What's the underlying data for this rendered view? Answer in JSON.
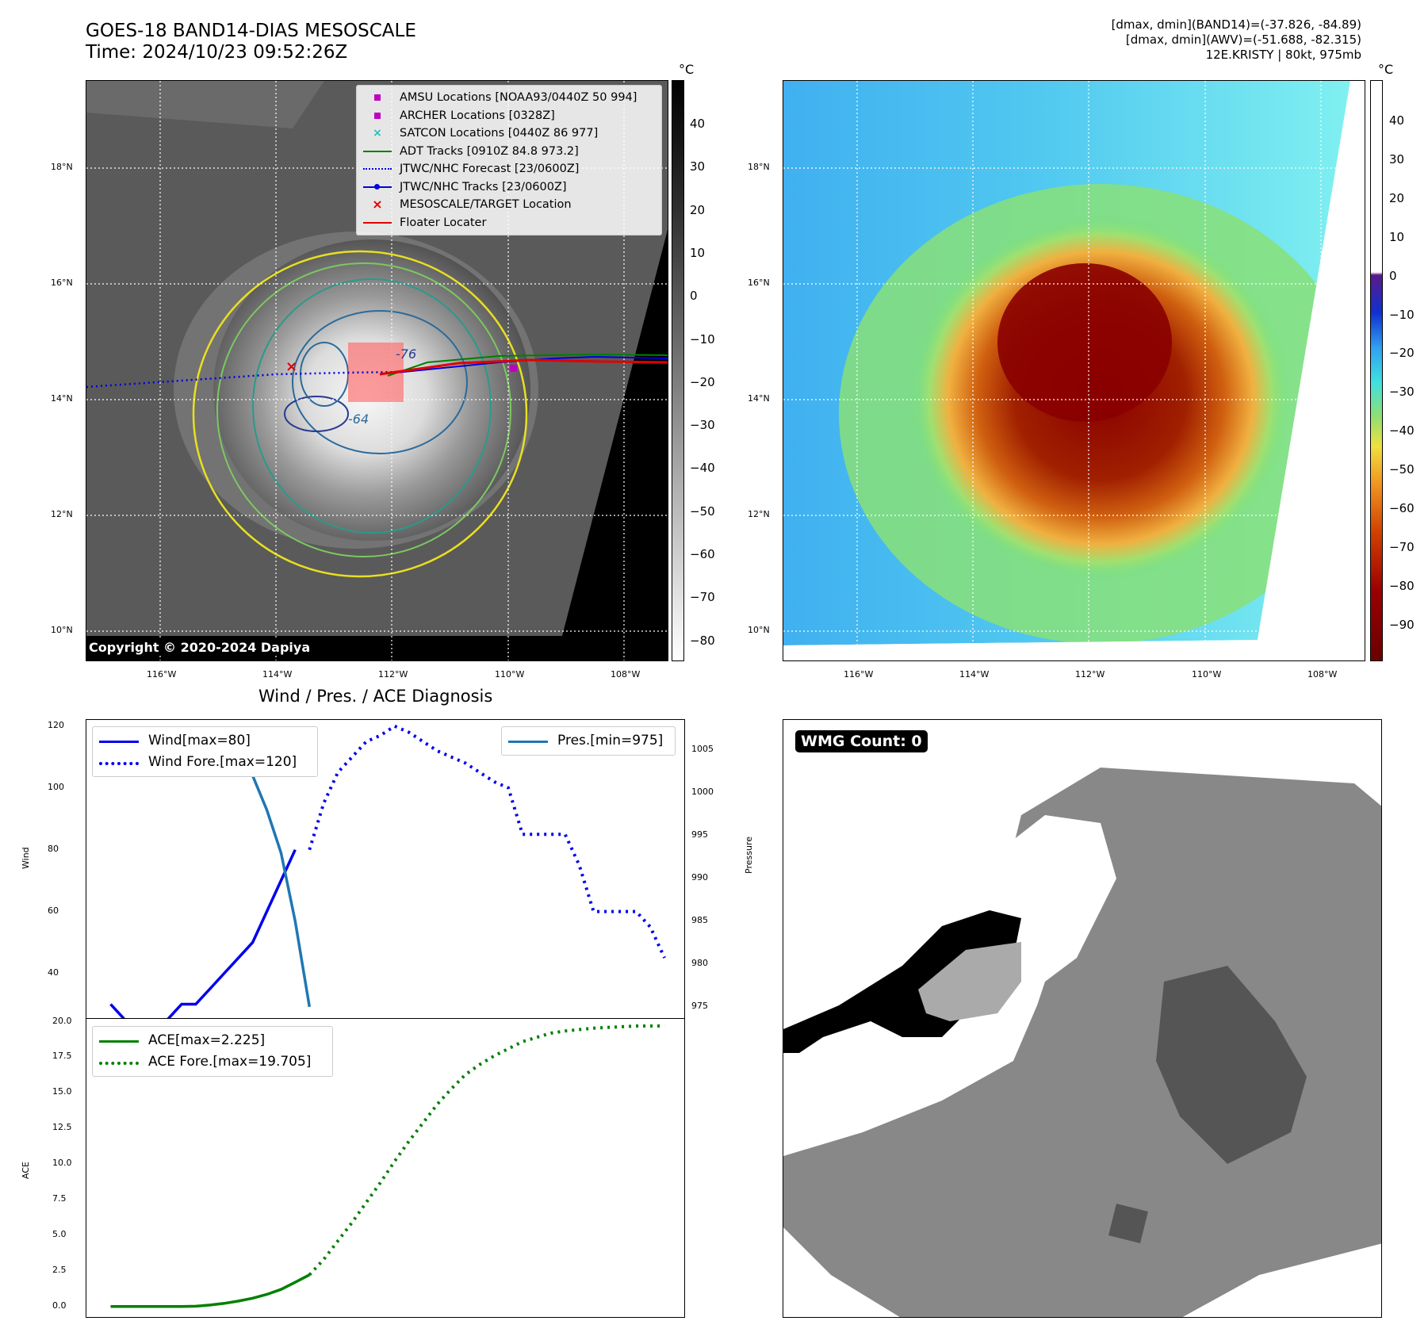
{
  "header": {
    "title_line1": "GOES-18 BAND14-DIAS MESOSCALE",
    "title_line2": "Time: 2024/10/23 09:52:26Z",
    "stats_line1": "[dmax, dmin](BAND14)=(-37.826, -84.89)",
    "stats_line2": "[dmax, dmin](AWV)=(-51.688, -82.315)",
    "stats_line3": "12E.KRISTY | 80kt, 975mb"
  },
  "maps": {
    "lon_ticks": [
      "116°W",
      "114°W",
      "112°W",
      "110°W",
      "108°W"
    ],
    "lat_ticks": [
      "18°N",
      "16°N",
      "14°N",
      "12°N",
      "10°N"
    ],
    "copyright": "Copyright © 2020-2024 Dapiya",
    "left_colorbar": {
      "unit": "°C",
      "ticks": [
        "40",
        "30",
        "20",
        "10",
        "0",
        "−10",
        "−20",
        "−30",
        "−40",
        "−50",
        "−60",
        "−70",
        "−80"
      ]
    },
    "right_colorbar": {
      "unit": "°C",
      "ticks": [
        "40",
        "30",
        "20",
        "10",
        "0",
        "−10",
        "−20",
        "−30",
        "−40",
        "−50",
        "−60",
        "−70",
        "−80",
        "−90"
      ]
    },
    "legend": [
      {
        "label": "AMSU Locations [NOAA93/0440Z 50 994]",
        "symbol": "square",
        "color": "#c000c0"
      },
      {
        "label": "ARCHER Locations [0328Z]",
        "symbol": "square",
        "color": "#c000c0"
      },
      {
        "label": "SATCON Locations [0440Z 86 977]",
        "symbol": "x",
        "color": "#20c0c0"
      },
      {
        "label": "ADT Tracks [0910Z 84.8 973.2]",
        "symbol": "line",
        "color": "#008000"
      },
      {
        "label": "JTWC/NHC Forecast [23/0600Z]",
        "symbol": "dotted",
        "color": "#0000e0"
      },
      {
        "label": "JTWC/NHC Tracks [23/0600Z]",
        "symbol": "line-dot",
        "color": "#0000e0"
      },
      {
        "label": "MESOSCALE/TARGET Location",
        "symbol": "x",
        "color": "#e00000"
      },
      {
        "label": "Floater Locater",
        "symbol": "line",
        "color": "#e00000"
      }
    ],
    "contour_labels": [
      "-76",
      "-64"
    ]
  },
  "wmg": {
    "label": "WMG Count: 0"
  },
  "chart_data": [
    {
      "type": "line",
      "title": "Wind / Pres. / ACE Diagnosis",
      "xlabel": "",
      "ylabel": "Wind",
      "ylabel_right": "Pressure",
      "ylim": [
        25,
        122
      ],
      "ylim_right": [
        973.5,
        1008.5
      ],
      "yticks": [
        40,
        60,
        80,
        100,
        120
      ],
      "yticks_right": [
        975,
        980,
        985,
        990,
        995,
        1000,
        1005
      ],
      "x": [
        0,
        1,
        2,
        3,
        4,
        5,
        6,
        7,
        8,
        9,
        10,
        11,
        12,
        13,
        14,
        15,
        16,
        17,
        18,
        19,
        20,
        21,
        22,
        23,
        24,
        25,
        26,
        27,
        28,
        29,
        30,
        31,
        32,
        33,
        34,
        35,
        36,
        37,
        38,
        39
      ],
      "xlim": [
        -1.7,
        40.5
      ],
      "series": [
        {
          "name": "Wind[max=80]",
          "axis": "left",
          "style": "solid",
          "color": "#0000ee",
          "x": [
            0,
            1,
            2,
            3,
            4,
            5,
            6,
            7,
            8,
            9,
            10,
            11,
            12,
            13,
            14
          ],
          "values": [
            30,
            25,
            25,
            25,
            25,
            30,
            30,
            35,
            40,
            45,
            50,
            60,
            70,
            80,
            null
          ]
        },
        {
          "name": "Wind Fore.[max=120]",
          "axis": "left",
          "style": "dotted",
          "color": "#0000ee",
          "x": [
            14,
            15,
            16,
            17,
            18,
            19,
            20,
            21,
            22,
            23,
            24,
            25,
            26,
            27,
            28,
            29,
            30,
            31,
            32,
            33,
            34,
            35,
            36,
            37,
            38,
            39
          ],
          "values": [
            80,
            95,
            105,
            110,
            115,
            117,
            120,
            118,
            115,
            112,
            110,
            108,
            105,
            102,
            100,
            85,
            85,
            85,
            85,
            75,
            60,
            60,
            60,
            60,
            55,
            45
          ]
        },
        {
          "name": "Pres.[min=975]",
          "axis": "right",
          "style": "solid",
          "color": "#1f77b4",
          "x": [
            0,
            1,
            2,
            3,
            4,
            5,
            6,
            7,
            8,
            9,
            10,
            11,
            12,
            13,
            14
          ],
          "values": [
            1006,
            1006,
            1006,
            1007,
            1007,
            1007,
            1006,
            1006,
            1005,
            1004,
            1002,
            998,
            993,
            985,
            975
          ]
        }
      ]
    },
    {
      "type": "line",
      "title": "",
      "xlabel": "",
      "ylabel": "ACE",
      "ylim": [
        -0.85,
        20.2
      ],
      "yticks": [
        0.0,
        2.5,
        5.0,
        7.5,
        10.0,
        12.5,
        15.0,
        17.5,
        20.0
      ],
      "xlim": [
        -1.7,
        40.5
      ],
      "series": [
        {
          "name": "ACE[max=2.225]",
          "style": "solid",
          "color": "#008000",
          "x": [
            0,
            1,
            2,
            3,
            4,
            5,
            6,
            7,
            8,
            9,
            10,
            11,
            12,
            13,
            14
          ],
          "values": [
            0,
            0,
            0,
            0,
            0,
            0,
            0.02,
            0.1,
            0.22,
            0.38,
            0.58,
            0.85,
            1.2,
            1.7,
            2.225
          ]
        },
        {
          "name": "ACE Fore.[max=19.705]",
          "style": "dotted",
          "color": "#008000",
          "x": [
            14,
            15,
            16,
            17,
            18,
            19,
            20,
            21,
            22,
            23,
            24,
            25,
            26,
            27,
            28,
            29,
            30,
            31,
            32,
            33,
            34,
            35,
            36,
            37,
            38,
            39
          ],
          "values": [
            2.225,
            3.3,
            4.6,
            5.9,
            7.3,
            8.7,
            10.2,
            11.6,
            12.9,
            14.2,
            15.3,
            16.3,
            17.0,
            17.6,
            18.1,
            18.6,
            18.9,
            19.2,
            19.35,
            19.45,
            19.55,
            19.6,
            19.65,
            19.7,
            19.7,
            19.705
          ]
        }
      ]
    }
  ]
}
